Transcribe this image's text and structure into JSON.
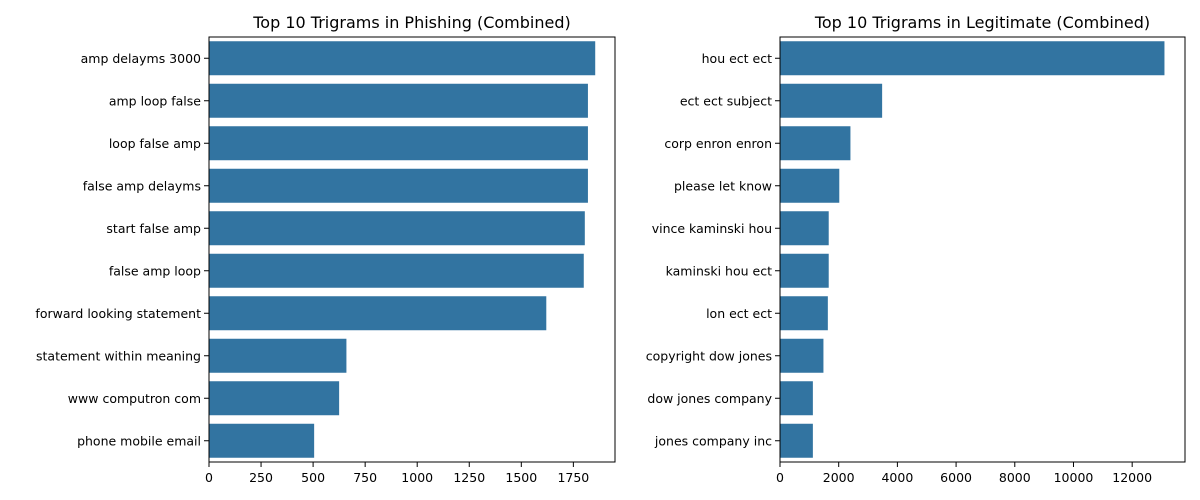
{
  "chart_data": [
    {
      "type": "bar",
      "orientation": "horizontal",
      "title": "Top 10 Trigrams in Phishing (Combined)",
      "xlabel": "",
      "ylabel": "",
      "categories": [
        "amp delayms 3000",
        "amp loop false",
        "loop false amp",
        "false amp delayms",
        "start false amp",
        "false amp loop",
        "forward looking statement",
        "statement within meaning",
        "www computron com",
        "phone mobile email"
      ],
      "values": [
        1855,
        1820,
        1820,
        1820,
        1805,
        1800,
        1620,
        660,
        625,
        505
      ],
      "xlim": [
        0,
        1950
      ],
      "xticks": [
        0,
        250,
        500,
        750,
        1000,
        1250,
        1500,
        1750
      ],
      "xtick_labels": [
        "0",
        "250",
        "500",
        "750",
        "1000",
        "1250",
        "1500",
        "1750"
      ],
      "color": "#3274a1",
      "grid": false
    },
    {
      "type": "bar",
      "orientation": "horizontal",
      "title": "Top 10 Trigrams in Legitimate (Combined)",
      "xlabel": "",
      "ylabel": "",
      "categories": [
        "hou ect ect",
        "ect ect subject",
        "corp enron enron",
        "please let know",
        "vince kaminski hou",
        "kaminski hou ect",
        "lon ect ect",
        "copyright dow jones",
        "dow jones company",
        "jones company inc"
      ],
      "values": [
        13100,
        3480,
        2400,
        2020,
        1660,
        1660,
        1630,
        1480,
        1120,
        1120
      ],
      "xlim": [
        0,
        13800
      ],
      "xticks": [
        0,
        2000,
        4000,
        6000,
        8000,
        10000,
        12000
      ],
      "xtick_labels": [
        "0",
        "2000",
        "4000",
        "6000",
        "8000",
        "10000",
        "12000"
      ],
      "color": "#3274a1",
      "grid": false
    }
  ]
}
